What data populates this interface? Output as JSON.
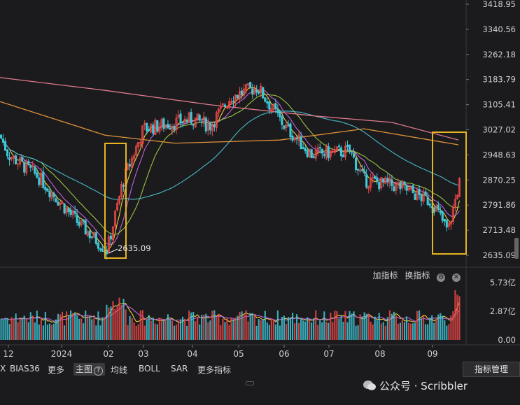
{
  "colors": {
    "background": "#1b1b1e",
    "up_candle": "#f04848",
    "down_candle": "#3ec8d8",
    "highlight_box": "#e8b420",
    "ma_slow": "#e07a8c",
    "ma_year": "#e0933a",
    "ma_quarter": "#4ab8c8",
    "ma_month": "#9ac040",
    "ma_week": "#c060d8",
    "ma_short": "#e8d040"
  },
  "chart_data": [
    {
      "type": "candlestick",
      "price_axis_ticks": [
        "3418.95",
        "3340.56",
        "3262.18",
        "3183.79",
        "3105.41",
        "3027.02",
        "2948.63",
        "2870.25",
        "2791.86",
        "2713.48",
        "2635.09"
      ],
      "ylim": [
        2635.09,
        3418.95
      ],
      "time_labels": [
        "12",
        "2024",
        "02",
        "03",
        "04",
        "05",
        "06",
        "07",
        "08",
        "09"
      ],
      "annotation": "2635.09",
      "approx_close_path": [
        {
          "x": "12",
          "y": 3010
        },
        {
          "x": "2024",
          "y": 2950
        },
        {
          "x": "01-mid",
          "y": 2880
        },
        {
          "x": "01-late",
          "y": 2740
        },
        {
          "x": "02",
          "y": 2650
        },
        {
          "x": "02-mid",
          "y": 2860
        },
        {
          "x": "03",
          "y": 3030
        },
        {
          "x": "04",
          "y": 3060
        },
        {
          "x": "04-late",
          "y": 3040
        },
        {
          "x": "05",
          "y": 3130
        },
        {
          "x": "05-mid",
          "y": 3160
        },
        {
          "x": "06",
          "y": 3040
        },
        {
          "x": "07",
          "y": 2950
        },
        {
          "x": "07-mid",
          "y": 2960
        },
        {
          "x": "08",
          "y": 2870
        },
        {
          "x": "08-late",
          "y": 2850
        },
        {
          "x": "09",
          "y": 2800
        },
        {
          "x": "09-mid",
          "y": 2710
        },
        {
          "x": "09-end",
          "y": 2860
        }
      ],
      "highlights": [
        "02",
        "09-end"
      ]
    },
    {
      "type": "bar",
      "volume_axis_ticks": [
        "5.73亿",
        "2.87亿",
        "0.00"
      ],
      "ylim": [
        0,
        5.73
      ],
      "unit": "亿"
    }
  ],
  "indicator_bar": {
    "add": "加指标",
    "switch": "换指标"
  },
  "toolbar": {
    "items": [
      "X",
      "BIAS36",
      "更多",
      "主图",
      "均线",
      "BOLL",
      "SAR",
      "更多指标"
    ],
    "manage": "指标管理"
  },
  "watermark": "公众号 · Scribbler",
  "icons": [
    "gear-icon",
    "close-icon",
    "help-icon",
    "wechat-icon"
  ]
}
